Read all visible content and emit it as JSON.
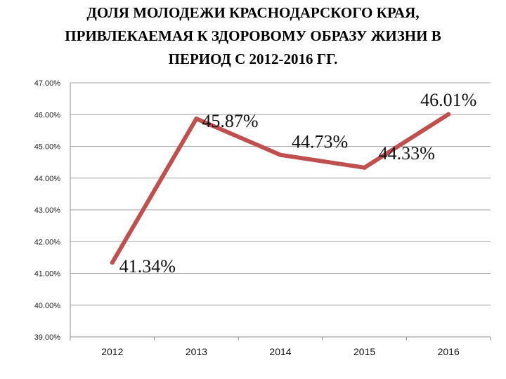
{
  "title_lines": [
    "ДОЛЯ МОЛОДЕЖИ КРАСНОДАРСКОГО КРАЯ,",
    "ПРИВЛЕКАЕМАЯ К ЗДОРОВОМУ ОБРАЗУ ЖИЗНИ В",
    "ПЕРИОД С 2012-2016 ГГ."
  ],
  "chart_data": {
    "type": "line",
    "title": "ДОЛЯ МОЛОДЕЖИ КРАСНОДАРСКОГО КРАЯ, ПРИВЛЕКАЕМАЯ К ЗДОРОВОМУ ОБРАЗУ ЖИЗНИ В ПЕРИОД С 2012-2016 ГГ.",
    "xlabel": "",
    "ylabel": "",
    "categories": [
      "2012",
      "2013",
      "2014",
      "2015",
      "2016"
    ],
    "series": [
      {
        "values": [
          41.34,
          45.87,
          44.73,
          44.33,
          46.01
        ],
        "data_labels": [
          "41.34%",
          "45.87%",
          "44.73%",
          "44.33%",
          "46.01%"
        ],
        "color": "#c0504d"
      }
    ],
    "ylim": [
      39,
      47
    ],
    "y_ticks": [
      {
        "value": 47,
        "label": "47.00%"
      },
      {
        "value": 46,
        "label": "46.00%"
      },
      {
        "value": 45,
        "label": "45.00%"
      },
      {
        "value": 44,
        "label": "44.00%"
      },
      {
        "value": 43,
        "label": "43.00%"
      },
      {
        "value": 42,
        "label": "42.00%"
      },
      {
        "value": 41,
        "label": "41.00%"
      },
      {
        "value": 40,
        "label": "40.00%"
      },
      {
        "value": 39,
        "label": "39.00%"
      }
    ],
    "grid": true,
    "legend": "none"
  }
}
